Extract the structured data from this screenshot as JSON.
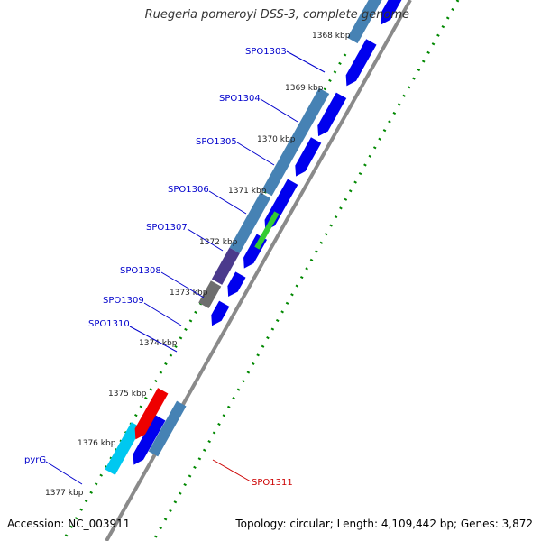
{
  "title": "Ruegeria pomeroyi DSS-3, complete genome",
  "accession": "Accession: NC_003911",
  "topology": "Topology: circular; Length: 4,109,442 bp; Genes: 3,872",
  "colors": {
    "backbone": "#808080",
    "forward_cds": "#0000ee",
    "cog_steel": "#4682b4",
    "cog_dark": "#4b3a8c",
    "cog_gray": "#6e6e6e",
    "cog_green": "#33cc33",
    "cog_cyan": "#00c8f0",
    "reverse_cds": "#ee0000",
    "gene_label": "#0000cc",
    "highlight_label": "#cc0000",
    "tick_dots": "#008800"
  },
  "kbp_ticks": [
    "1368 kbp",
    "1369 kbp",
    "1370 kbp",
    "1371 kbp",
    "1372 kbp",
    "1373 kbp",
    "1374 kbp",
    "1375 kbp",
    "1376 kbp",
    "1377 kbp"
  ],
  "gene_labels": [
    {
      "name": "SPO1303",
      "strand": "forward"
    },
    {
      "name": "SPO1304",
      "strand": "forward"
    },
    {
      "name": "SPO1305",
      "strand": "forward"
    },
    {
      "name": "SPO1306",
      "strand": "forward"
    },
    {
      "name": "SPO1307",
      "strand": "forward"
    },
    {
      "name": "SPO1308",
      "strand": "forward"
    },
    {
      "name": "SPO1309",
      "strand": "forward"
    },
    {
      "name": "SPO1310",
      "strand": "forward"
    },
    {
      "name": "pyrG",
      "strand": "forward"
    },
    {
      "name": "SPO1311",
      "strand": "reverse"
    }
  ]
}
